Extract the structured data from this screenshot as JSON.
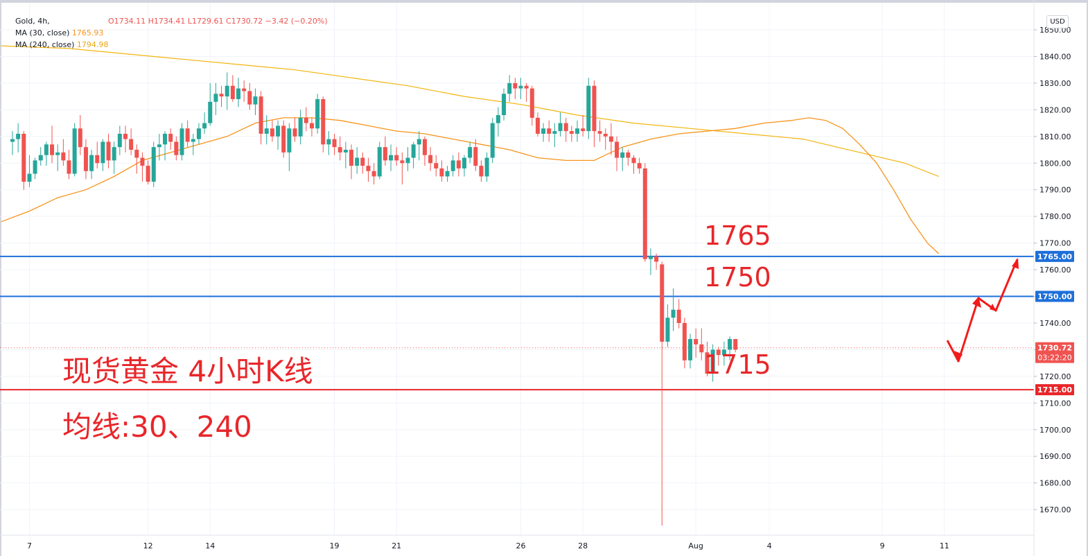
{
  "header": {
    "symbol": "Gold, 4h,",
    "ohlc": "O1734.11  H1734.41  L1729.61  C1730.72  −3.42 (−0.20%)",
    "ma30_label": "MA (30, close)",
    "ma30_value": "1765.93",
    "ma240_label": "MA (240, close)",
    "ma240_value": "1794.98",
    "currency": "USD"
  },
  "annotations": {
    "title": "现货黄金 4小时K线",
    "subtitle": "均线:30、240",
    "level_1765": "1765",
    "level_1750": "1750",
    "level_1715": "1715"
  },
  "price_tags": {
    "l1765": "1765.00",
    "l1750": "1750.00",
    "current": "1730.72",
    "countdown": "03:22:20",
    "l1715": "1715.00"
  },
  "colors": {
    "up": "#26a69a",
    "down": "#ef5350",
    "ma30": "#f7931a",
    "ma240": "#f2b40c",
    "hline_blue": "#1e6fd9",
    "hline_red": "#e8262a",
    "arrow": "#f21b1b"
  },
  "chart_data": {
    "type": "candlestick",
    "symbol": "Gold",
    "timeframe": "4h",
    "y_axis_ticks": [
      1850,
      1840,
      1830,
      1820,
      1810,
      1800,
      1790,
      1780,
      1770,
      1760,
      1750,
      1740,
      1730,
      1720,
      1710,
      1700,
      1690,
      1680,
      1670
    ],
    "y_tick_labels": [
      "1850.00",
      "1840.00",
      "1830.00",
      "1820.00",
      "1810.00",
      "1800.00",
      "1790.00",
      "1780.00",
      "1770.00",
      "1760.00",
      "1750.00",
      "1740.00",
      "1730.00",
      "1720.00",
      "1710.00",
      "1700.00",
      "1690.00",
      "1680.00",
      "1670.00"
    ],
    "ylim": [
      1662,
      1852
    ],
    "x_ticks": [
      {
        "label": "7",
        "index": 3
      },
      {
        "label": "12",
        "index": 24
      },
      {
        "label": "14",
        "index": 35
      },
      {
        "label": "19",
        "index": 57
      },
      {
        "label": "21",
        "index": 68
      },
      {
        "label": "26",
        "index": 90
      },
      {
        "label": "28",
        "index": 101
      },
      {
        "label": "Aug",
        "index": 121
      },
      {
        "label": "4",
        "index": 134
      },
      {
        "label": "9",
        "index": 154
      },
      {
        "label": "11",
        "index": 165
      }
    ],
    "candles": [
      [
        1808,
        1812,
        1803,
        1809
      ],
      [
        1809,
        1815,
        1804,
        1811
      ],
      [
        1811,
        1812,
        1790,
        1793
      ],
      [
        1793,
        1803,
        1791,
        1796
      ],
      [
        1796,
        1802,
        1794,
        1801
      ],
      [
        1801,
        1806,
        1799,
        1803
      ],
      [
        1803,
        1808,
        1799,
        1807
      ],
      [
        1807,
        1814,
        1800,
        1803
      ],
      [
        1803,
        1807,
        1797,
        1804
      ],
      [
        1804,
        1809,
        1799,
        1801
      ],
      [
        1801,
        1805,
        1794,
        1796
      ],
      [
        1796,
        1815,
        1795,
        1813
      ],
      [
        1813,
        1818,
        1803,
        1806
      ],
      [
        1806,
        1809,
        1794,
        1797
      ],
      [
        1797,
        1805,
        1794,
        1803
      ],
      [
        1803,
        1808,
        1798,
        1800
      ],
      [
        1800,
        1809,
        1797,
        1808
      ],
      [
        1808,
        1811,
        1798,
        1801
      ],
      [
        1801,
        1808,
        1796,
        1806
      ],
      [
        1806,
        1814,
        1803,
        1811
      ],
      [
        1811,
        1814,
        1804,
        1809
      ],
      [
        1809,
        1813,
        1803,
        1805
      ],
      [
        1805,
        1807,
        1796,
        1802
      ],
      [
        1802,
        1804,
        1793,
        1799
      ],
      [
        1799,
        1801,
        1792,
        1793
      ],
      [
        1793,
        1808,
        1791,
        1806
      ],
      [
        1806,
        1811,
        1801,
        1807
      ],
      [
        1807,
        1812,
        1801,
        1811
      ],
      [
        1811,
        1813,
        1805,
        1808
      ],
      [
        1808,
        1810,
        1801,
        1803
      ],
      [
        1803,
        1815,
        1801,
        1813
      ],
      [
        1813,
        1816,
        1806,
        1808
      ],
      [
        1808,
        1811,
        1803,
        1809
      ],
      [
        1809,
        1815,
        1807,
        1813
      ],
      [
        1813,
        1819,
        1811,
        1815
      ],
      [
        1815,
        1830,
        1814,
        1823
      ],
      [
        1823,
        1830,
        1818,
        1826
      ],
      [
        1826,
        1829,
        1821,
        1825
      ],
      [
        1825,
        1834,
        1820,
        1829
      ],
      [
        1829,
        1833,
        1823,
        1824
      ],
      [
        1824,
        1832,
        1821,
        1828
      ],
      [
        1828,
        1831,
        1823,
        1827
      ],
      [
        1827,
        1830,
        1820,
        1822
      ],
      [
        1822,
        1828,
        1818,
        1825
      ],
      [
        1825,
        1827,
        1807,
        1811
      ],
      [
        1811,
        1818,
        1807,
        1813
      ],
      [
        1813,
        1816,
        1808,
        1810
      ],
      [
        1810,
        1816,
        1805,
        1814
      ],
      [
        1814,
        1816,
        1802,
        1804
      ],
      [
        1804,
        1815,
        1797,
        1813
      ],
      [
        1813,
        1817,
        1808,
        1810
      ],
      [
        1810,
        1820,
        1807,
        1817
      ],
      [
        1817,
        1821,
        1812,
        1815
      ],
      [
        1815,
        1817,
        1810,
        1813
      ],
      [
        1813,
        1826,
        1811,
        1824
      ],
      [
        1824,
        1825,
        1804,
        1807
      ],
      [
        1807,
        1812,
        1803,
        1809
      ],
      [
        1809,
        1811,
        1803,
        1806
      ],
      [
        1806,
        1810,
        1801,
        1804
      ],
      [
        1804,
        1808,
        1798,
        1805
      ],
      [
        1805,
        1807,
        1794,
        1799
      ],
      [
        1799,
        1806,
        1796,
        1802
      ],
      [
        1802,
        1804,
        1796,
        1799
      ],
      [
        1799,
        1802,
        1793,
        1797
      ],
      [
        1797,
        1800,
        1792,
        1795
      ],
      [
        1795,
        1808,
        1794,
        1806
      ],
      [
        1806,
        1810,
        1799,
        1801
      ],
      [
        1801,
        1807,
        1797,
        1803
      ],
      [
        1803,
        1806,
        1799,
        1801
      ],
      [
        1801,
        1804,
        1792,
        1800
      ],
      [
        1800,
        1806,
        1797,
        1802
      ],
      [
        1802,
        1808,
        1798,
        1807
      ],
      [
        1807,
        1812,
        1801,
        1809
      ],
      [
        1809,
        1810,
        1799,
        1803
      ],
      [
        1803,
        1806,
        1797,
        1800
      ],
      [
        1800,
        1803,
        1795,
        1798
      ],
      [
        1798,
        1801,
        1793,
        1795
      ],
      [
        1795,
        1799,
        1793,
        1797
      ],
      [
        1797,
        1803,
        1795,
        1801
      ],
      [
        1801,
        1804,
        1795,
        1798
      ],
      [
        1798,
        1803,
        1795,
        1802
      ],
      [
        1802,
        1808,
        1800,
        1806
      ],
      [
        1806,
        1809,
        1797,
        1799
      ],
      [
        1799,
        1801,
        1793,
        1795
      ],
      [
        1795,
        1804,
        1793,
        1802
      ],
      [
        1802,
        1817,
        1800,
        1815
      ],
      [
        1815,
        1821,
        1810,
        1818
      ],
      [
        1818,
        1828,
        1816,
        1826
      ],
      [
        1826,
        1833,
        1823,
        1830
      ],
      [
        1830,
        1832,
        1824,
        1828
      ],
      [
        1828,
        1832,
        1824,
        1829
      ],
      [
        1829,
        1830,
        1823,
        1828
      ],
      [
        1828,
        1829,
        1814,
        1817
      ],
      [
        1817,
        1819,
        1810,
        1811
      ],
      [
        1811,
        1815,
        1808,
        1813
      ],
      [
        1813,
        1816,
        1808,
        1811
      ],
      [
        1811,
        1815,
        1806,
        1812
      ],
      [
        1812,
        1819,
        1810,
        1815
      ],
      [
        1815,
        1817,
        1808,
        1812
      ],
      [
        1812,
        1814,
        1808,
        1811
      ],
      [
        1811,
        1816,
        1808,
        1813
      ],
      [
        1813,
        1818,
        1810,
        1812
      ],
      [
        1812,
        1832,
        1809,
        1829
      ],
      [
        1829,
        1831,
        1806,
        1812
      ],
      [
        1812,
        1816,
        1808,
        1811
      ],
      [
        1811,
        1813,
        1805,
        1810
      ],
      [
        1810,
        1815,
        1803,
        1808
      ],
      [
        1808,
        1810,
        1797,
        1802
      ],
      [
        1802,
        1806,
        1797,
        1804
      ],
      [
        1804,
        1805,
        1799,
        1802
      ],
      [
        1802,
        1803,
        1796,
        1800
      ],
      [
        1800,
        1802,
        1796,
        1798
      ],
      [
        1798,
        1800,
        1763,
        1764
      ],
      [
        1764,
        1768,
        1758,
        1765
      ],
      [
        1765,
        1766,
        1760,
        1763
      ],
      [
        1762,
        1763,
        1664,
        1733
      ],
      [
        1733,
        1747,
        1731,
        1742
      ],
      [
        1742,
        1753,
        1737,
        1745
      ],
      [
        1745,
        1749,
        1738,
        1740
      ],
      [
        1740,
        1742,
        1723,
        1726
      ],
      [
        1726,
        1736,
        1723,
        1734
      ],
      [
        1734,
        1738,
        1727,
        1732
      ],
      [
        1732,
        1738,
        1726,
        1729
      ],
      [
        1729,
        1733,
        1720,
        1721
      ],
      [
        1721,
        1732,
        1718,
        1730
      ],
      [
        1730,
        1731,
        1724,
        1728
      ],
      [
        1728,
        1733,
        1724,
        1730
      ],
      [
        1730,
        1735,
        1726,
        1734
      ],
      [
        1734,
        1734,
        1729,
        1730
      ]
    ],
    "ma30": [
      [
        -2,
        1778
      ],
      [
        3,
        1782
      ],
      [
        8,
        1787
      ],
      [
        13,
        1790
      ],
      [
        18,
        1795
      ],
      [
        23,
        1801
      ],
      [
        28,
        1804
      ],
      [
        33,
        1807
      ],
      [
        38,
        1810
      ],
      [
        43,
        1815
      ],
      [
        48,
        1817
      ],
      [
        53,
        1817
      ],
      [
        58,
        1816
      ],
      [
        63,
        1814
      ],
      [
        68,
        1812
      ],
      [
        73,
        1811
      ],
      [
        78,
        1809
      ],
      [
        83,
        1807
      ],
      [
        88,
        1805
      ],
      [
        93,
        1802
      ],
      [
        98,
        1801
      ],
      [
        103,
        1801
      ],
      [
        108,
        1806
      ],
      [
        113,
        1809
      ],
      [
        118,
        1811
      ],
      [
        123,
        1812
      ],
      [
        128,
        1813
      ],
      [
        133,
        1815
      ],
      [
        138,
        1816
      ],
      [
        141,
        1817
      ],
      [
        144,
        1816
      ],
      [
        147,
        1813
      ],
      [
        150,
        1807
      ],
      [
        153,
        1800
      ],
      [
        156,
        1790
      ],
      [
        159,
        1779
      ],
      [
        162,
        1770
      ],
      [
        164,
        1766
      ]
    ],
    "ma240": [
      [
        -2,
        1844
      ],
      [
        10,
        1843
      ],
      [
        20,
        1841
      ],
      [
        30,
        1839
      ],
      [
        40,
        1837
      ],
      [
        50,
        1835
      ],
      [
        60,
        1832
      ],
      [
        70,
        1829
      ],
      [
        80,
        1825
      ],
      [
        90,
        1822
      ],
      [
        100,
        1818
      ],
      [
        110,
        1815
      ],
      [
        120,
        1813
      ],
      [
        130,
        1811
      ],
      [
        140,
        1809
      ],
      [
        146,
        1806
      ],
      [
        152,
        1803
      ],
      [
        158,
        1800
      ],
      [
        164,
        1795
      ]
    ],
    "horizontal_lines": [
      {
        "price": 1765,
        "label": "1765",
        "color": "blue"
      },
      {
        "price": 1750,
        "label": "1750",
        "color": "blue"
      },
      {
        "price": 1715,
        "label": "1715",
        "color": "red"
      }
    ],
    "current_price": 1730.72
  }
}
